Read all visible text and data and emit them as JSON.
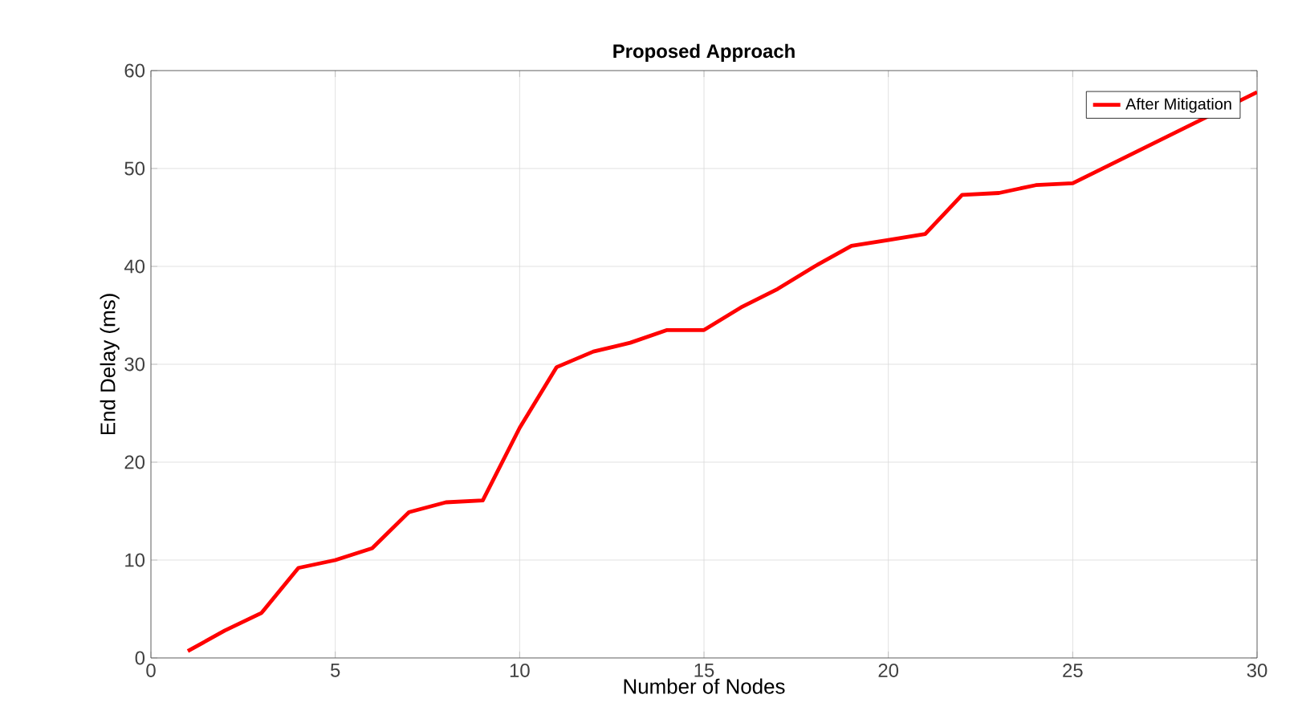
{
  "chart_data": {
    "type": "line",
    "title": "Proposed Approach",
    "xlabel": "Number of Nodes",
    "ylabel": "End Delay (ms)",
    "x": [
      1,
      2,
      3,
      4,
      5,
      6,
      7,
      8,
      9,
      10,
      11,
      12,
      13,
      14,
      15,
      16,
      17,
      18,
      19,
      20,
      21,
      22,
      23,
      24,
      25,
      26,
      27,
      28,
      29,
      30
    ],
    "series": [
      {
        "name": "After Mitigation",
        "color": "#ff0000",
        "values": [
          0.7,
          2.8,
          4.6,
          9.2,
          10.0,
          11.2,
          14.9,
          15.9,
          16.1,
          23.5,
          29.7,
          31.3,
          32.2,
          33.5,
          33.5,
          35.8,
          37.7,
          40.0,
          42.1,
          42.7,
          43.3,
          47.3,
          47.5,
          48.3,
          48.5,
          null,
          null,
          null,
          null,
          57.8
        ]
      }
    ],
    "xlim": [
      0,
      30
    ],
    "xticks": [
      0,
      5,
      10,
      15,
      20,
      25,
      30
    ],
    "ylim": [
      0,
      60
    ],
    "yticks": [
      0,
      10,
      20,
      30,
      40,
      50,
      60
    ],
    "grid": true,
    "legend": "top right"
  }
}
